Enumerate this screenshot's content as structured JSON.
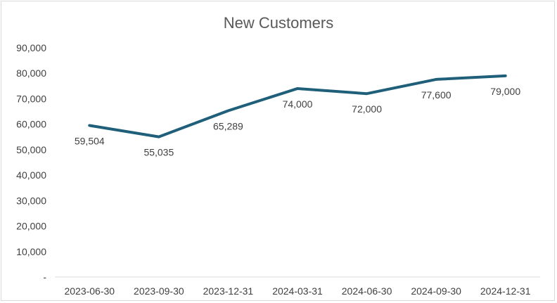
{
  "chart_data": {
    "type": "line",
    "title": "New Customers",
    "categories": [
      "2023-06-30",
      "2023-09-30",
      "2023-12-31",
      "2024-03-31",
      "2024-06-30",
      "2024-09-30",
      "2024-12-31"
    ],
    "series": [
      {
        "values": [
          59504,
          55035,
          65289,
          74000,
          72000,
          77600,
          79000
        ],
        "labels": [
          "59,504",
          "55,035",
          "65,289",
          "74,000",
          "72,000",
          "77,600",
          "79,000"
        ],
        "color": "#1f5f7a"
      }
    ],
    "yticks": [
      "-",
      "10,000",
      "20,000",
      "30,000",
      "40,000",
      "50,000",
      "60,000",
      "70,000",
      "80,000",
      "90,000"
    ],
    "ylim": [
      0,
      90000
    ],
    "xlabel": "",
    "ylabel": "",
    "grid": false,
    "legend": "none"
  }
}
